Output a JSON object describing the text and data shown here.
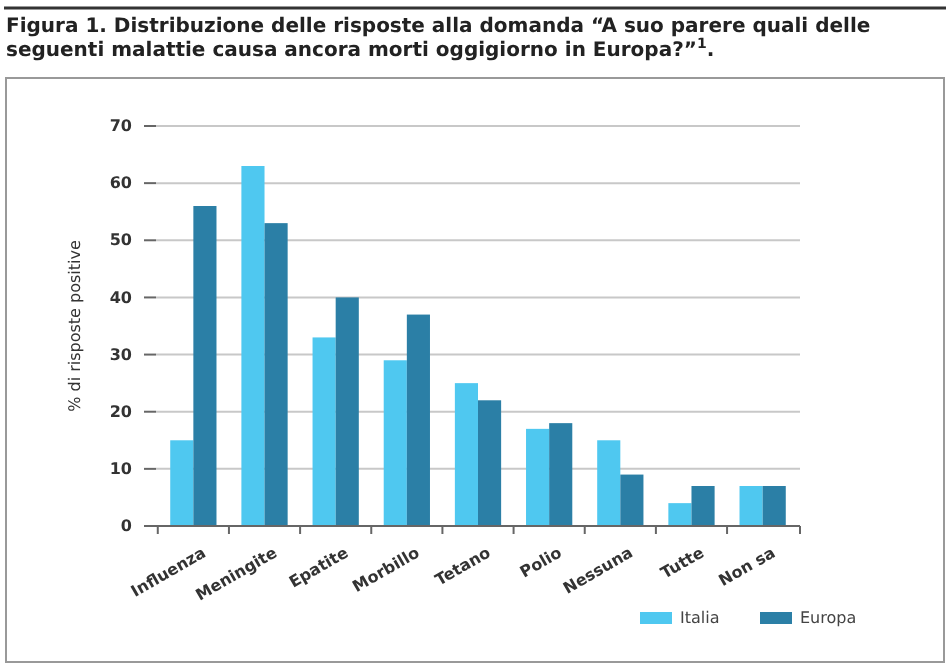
{
  "chart_data": {
    "type": "bar",
    "title": "Figura 1. Distribuzione delle risposte alla domanda “A suo parere quali delle seguenti malattie causa ancora morti oggigiorno in Europa?”$^{1}$.",
    "ylabel": "% di risposte positive",
    "categories": [
      "Influenza",
      "Meningite",
      "Epatite",
      "Morbillo",
      "Tetano",
      "Polio",
      "Nessuna",
      "Tutte",
      "Non sa"
    ],
    "series": [
      {
        "name": "Italia",
        "color": "#4fc8f0",
        "values": [
          15,
          63,
          33,
          29,
          25,
          17,
          15,
          4,
          7
        ]
      },
      {
        "name": "Europa",
        "color": "#2b7fa6",
        "values": [
          56,
          53,
          40,
          37,
          22,
          18,
          9,
          7,
          7
        ]
      }
    ],
    "ylim": [
      0,
      70
    ],
    "yticks": [
      0,
      10,
      20,
      30,
      40,
      50,
      60,
      70
    ],
    "grid": "y",
    "legend": "bottom right"
  }
}
